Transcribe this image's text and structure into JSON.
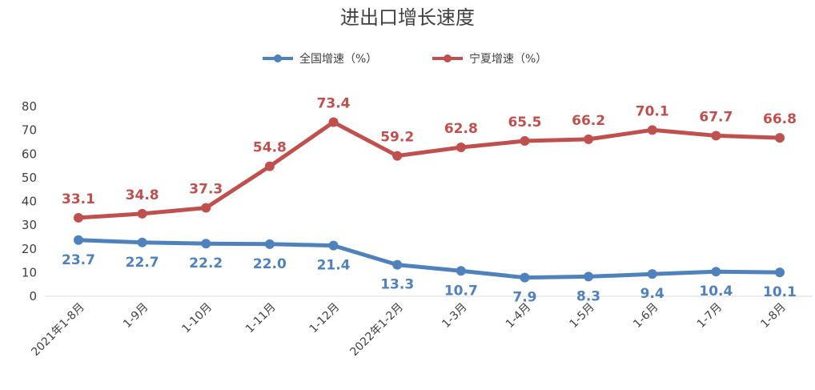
{
  "chart_data": {
    "type": "line",
    "title": "进出口增长速度",
    "xlabel": "",
    "ylabel": "",
    "ylim": [
      0,
      80
    ],
    "yticks": [
      0,
      10,
      20,
      30,
      40,
      50,
      60,
      70,
      80
    ],
    "grid": false,
    "legend_position": "top-center",
    "categories": [
      "2021年1-8月",
      "1-9月",
      "1-10月",
      "1-11月",
      "1-12月",
      "2022年1-2月",
      "1-3月",
      "1-4月",
      "1-5月",
      "1-6月",
      "1-7月",
      "1-8月"
    ],
    "series": [
      {
        "name": "全国增速（%）",
        "color": "#4F81BD",
        "label_position": "below",
        "values": [
          23.7,
          22.7,
          22.2,
          22.0,
          21.4,
          13.3,
          10.7,
          7.9,
          8.3,
          9.4,
          10.4,
          10.1
        ]
      },
      {
        "name": "宁夏增速（%）",
        "color": "#C0504D",
        "label_position": "above",
        "values": [
          33.1,
          34.8,
          37.3,
          54.8,
          73.4,
          59.2,
          62.8,
          65.5,
          66.2,
          70.1,
          67.7,
          66.8
        ]
      }
    ]
  }
}
